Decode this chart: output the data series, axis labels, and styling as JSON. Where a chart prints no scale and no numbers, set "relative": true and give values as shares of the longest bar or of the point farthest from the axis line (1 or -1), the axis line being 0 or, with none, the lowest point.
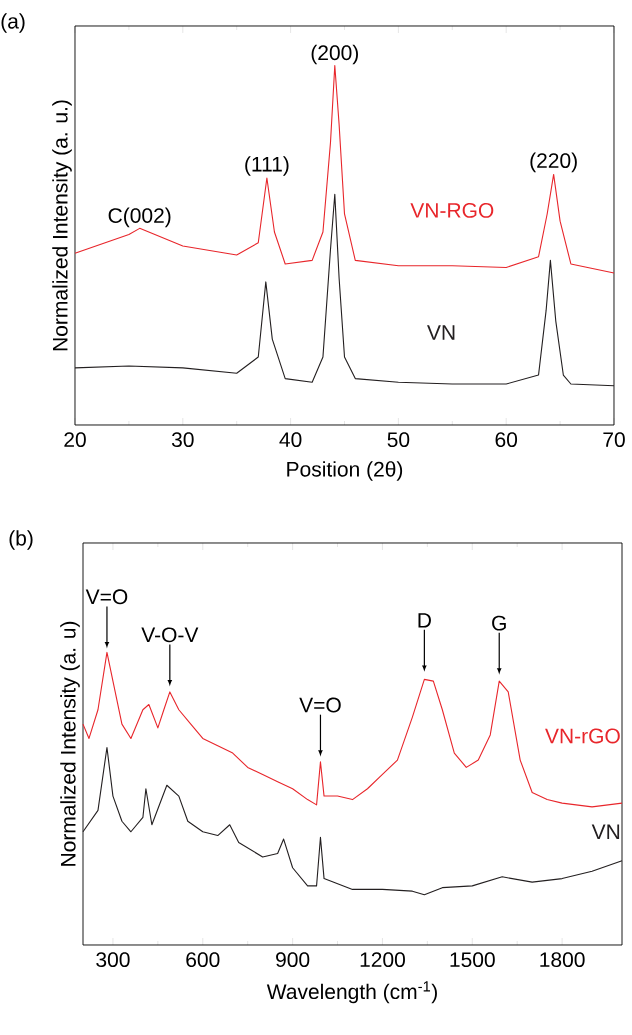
{
  "chart_data": [
    {
      "type": "line",
      "relative": true,
      "xlabel": "Position (2θ)",
      "ylabel": "Normalized Intensity (a. u.)",
      "xlim": [
        20,
        70
      ],
      "xticks": [
        20,
        30,
        40,
        50,
        60,
        70
      ],
      "legend": false,
      "grid": false,
      "series": [
        {
          "name": "VN-RGO",
          "color": "#e8262b",
          "x": [
            20,
            25,
            26,
            30,
            35,
            37,
            37.8,
            38.5,
            39.5,
            42,
            43,
            43.7,
            44.1,
            44.5,
            45,
            46,
            50,
            55,
            60,
            63,
            63.8,
            64.4,
            65,
            66,
            70
          ],
          "values": [
            0.478,
            0.53,
            0.547,
            0.498,
            0.473,
            0.507,
            0.687,
            0.537,
            0.448,
            0.458,
            0.537,
            0.786,
            1.0,
            0.836,
            0.587,
            0.458,
            0.443,
            0.443,
            0.438,
            0.468,
            0.587,
            0.697,
            0.567,
            0.448,
            0.423
          ]
        },
        {
          "name": "VN",
          "color": "#231f20",
          "x": [
            20,
            25,
            30,
            35,
            37,
            37.7,
            38.3,
            39.5,
            42,
            43,
            43.7,
            44.1,
            44.5,
            45,
            46,
            50,
            55,
            60,
            63,
            63.7,
            64.1,
            64.6,
            65.3,
            66,
            70
          ],
          "values": [
            0.159,
            0.164,
            0.159,
            0.144,
            0.189,
            0.398,
            0.239,
            0.129,
            0.119,
            0.189,
            0.488,
            0.642,
            0.408,
            0.189,
            0.129,
            0.119,
            0.114,
            0.114,
            0.139,
            0.318,
            0.458,
            0.289,
            0.139,
            0.114,
            0.109
          ]
        }
      ],
      "annotations": [
        "(a)",
        {
          "text": "C(002)",
          "x": 26,
          "y": 0.547
        },
        {
          "text": "(111)",
          "x": 37.8,
          "y": 0.69
        },
        {
          "text": "(200)",
          "x": 44.1,
          "y": 1.0
        },
        {
          "text": "(220)",
          "x": 64.4,
          "y": 0.7
        }
      ]
    },
    {
      "type": "line",
      "relative": true,
      "xlabel": "Wavelength (cm$^{-1}$)",
      "ylabel": "Normalized Intensity (a. u)",
      "xlim": [
        200,
        2000
      ],
      "xticks": [
        300,
        600,
        900,
        1200,
        1500,
        1800
      ],
      "legend": false,
      "grid": false,
      "series": [
        {
          "name": "VN-rGO",
          "color": "#e8262b",
          "x": [
            200,
            220,
            250,
            280,
            300,
            330,
            360,
            400,
            420,
            450,
            470,
            490,
            520,
            560,
            600,
            650,
            700,
            750,
            800,
            850,
            900,
            950,
            980,
            993,
            1005,
            1050,
            1100,
            1150,
            1200,
            1250,
            1300,
            1340,
            1370,
            1400,
            1440,
            1480,
            1520,
            1560,
            1590,
            1620,
            1660,
            1700,
            1750,
            1800,
            1900,
            2000
          ],
          "values": [
            0.755,
            0.706,
            0.804,
            1.0,
            0.902,
            0.755,
            0.706,
            0.804,
            0.822,
            0.742,
            0.804,
            0.865,
            0.804,
            0.755,
            0.706,
            0.681,
            0.656,
            0.607,
            0.583,
            0.558,
            0.534,
            0.497,
            0.479,
            0.626,
            0.509,
            0.509,
            0.497,
            0.534,
            0.583,
            0.632,
            0.779,
            0.908,
            0.902,
            0.804,
            0.656,
            0.607,
            0.632,
            0.718,
            0.902,
            0.865,
            0.632,
            0.521,
            0.497,
            0.485,
            0.472,
            0.485
          ]
        },
        {
          "name": "VN",
          "color": "#231f20",
          "x": [
            200,
            250,
            280,
            300,
            330,
            360,
            400,
            410,
            430,
            480,
            520,
            550,
            600,
            650,
            690,
            720,
            800,
            850,
            870,
            900,
            950,
            980,
            993,
            1005,
            1100,
            1200,
            1300,
            1340,
            1400,
            1500,
            1600,
            1700,
            1800,
            1900,
            2000
          ],
          "values": [
            0.387,
            0.46,
            0.675,
            0.509,
            0.423,
            0.387,
            0.436,
            0.534,
            0.411,
            0.546,
            0.509,
            0.423,
            0.387,
            0.374,
            0.411,
            0.35,
            0.301,
            0.313,
            0.362,
            0.264,
            0.202,
            0.202,
            0.368,
            0.227,
            0.19,
            0.19,
            0.184,
            0.172,
            0.196,
            0.202,
            0.233,
            0.215,
            0.227,
            0.252,
            0.288
          ]
        }
      ],
      "annotations": [
        "(b)",
        {
          "text": "V=O",
          "x": 280,
          "y": 1.0
        },
        {
          "text": "V-O-V",
          "x": 490,
          "y": 0.87
        },
        {
          "text": "V=O",
          "x": 993,
          "y": 0.63
        },
        {
          "text": "D",
          "x": 1340,
          "y": 0.92
        },
        {
          "text": "G",
          "x": 1590,
          "y": 0.91
        }
      ]
    }
  ]
}
